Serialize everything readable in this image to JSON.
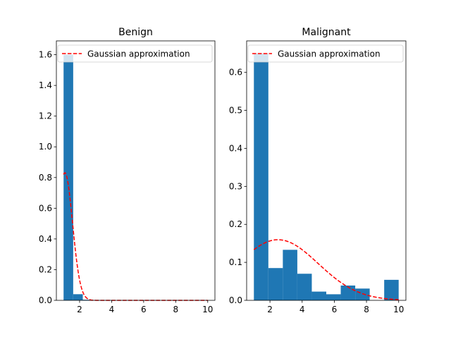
{
  "chart_data": [
    {
      "type": "bar",
      "title": "Benign",
      "xlabel": "",
      "ylabel": "",
      "xlim": [
        0.55,
        10.45
      ],
      "ylim": [
        0,
        1.69
      ],
      "xticks": [
        "2",
        "4",
        "6",
        "8",
        "10"
      ],
      "yticks": [
        "0.0",
        "0.2",
        "0.4",
        "0.6",
        "0.8",
        "1.0",
        "1.2",
        "1.4",
        "1.6"
      ],
      "bar_color": "#1f77b4",
      "bins": [
        {
          "x0": 1.0,
          "x1": 1.6,
          "value": 1.6
        },
        {
          "x0": 1.6,
          "x1": 2.2,
          "value": 0.04
        },
        {
          "x0": 2.2,
          "x1": 2.8,
          "value": 0.004
        },
        {
          "x0": 2.8,
          "x1": 3.4,
          "value": 0.002
        },
        {
          "x0": 3.4,
          "x1": 4.0,
          "value": 0.002
        },
        {
          "x0": 4.6,
          "x1": 5.2,
          "value": 0.002
        },
        {
          "x0": 5.8,
          "x1": 6.4,
          "value": 0.002
        },
        {
          "x0": 6.4,
          "x1": 7.0,
          "value": 0.002
        },
        {
          "x0": 7.6,
          "x1": 8.2,
          "value": 0.002
        },
        {
          "x0": 9.4,
          "x1": 10.0,
          "value": 0.002
        }
      ],
      "gaussian": {
        "mean": 1.08,
        "std": 0.48,
        "color": "#ff0000",
        "x_range": [
          1,
          10
        ]
      },
      "legend": {
        "label": "Gaussian approximation",
        "position": "top-right"
      }
    },
    {
      "type": "bar",
      "title": "Malignant",
      "xlabel": "",
      "ylabel": "",
      "xlim": [
        0.55,
        10.45
      ],
      "ylim": [
        0,
        0.683
      ],
      "xticks": [
        "2",
        "4",
        "6",
        "8",
        "10"
      ],
      "yticks": [
        "0.0",
        "0.1",
        "0.2",
        "0.3",
        "0.4",
        "0.5",
        "0.6"
      ],
      "bar_color": "#1f77b4",
      "bins": [
        {
          "x0": 1.0,
          "x1": 1.9,
          "value": 0.65
        },
        {
          "x0": 1.9,
          "x1": 2.8,
          "value": 0.085
        },
        {
          "x0": 2.8,
          "x1": 3.7,
          "value": 0.133
        },
        {
          "x0": 3.7,
          "x1": 4.6,
          "value": 0.07
        },
        {
          "x0": 4.6,
          "x1": 5.5,
          "value": 0.023
        },
        {
          "x0": 5.5,
          "x1": 6.4,
          "value": 0.016
        },
        {
          "x0": 6.4,
          "x1": 7.3,
          "value": 0.039
        },
        {
          "x0": 7.3,
          "x1": 8.2,
          "value": 0.031
        },
        {
          "x0": 8.2,
          "x1": 9.1,
          "value": 0.0
        },
        {
          "x0": 9.1,
          "x1": 10.0,
          "value": 0.054
        }
      ],
      "gaussian": {
        "mean": 2.5,
        "std": 2.5,
        "color": "#ff0000",
        "x_range": [
          1,
          10
        ]
      },
      "legend": {
        "label": "Gaussian approximation",
        "position": "top-right"
      }
    }
  ]
}
